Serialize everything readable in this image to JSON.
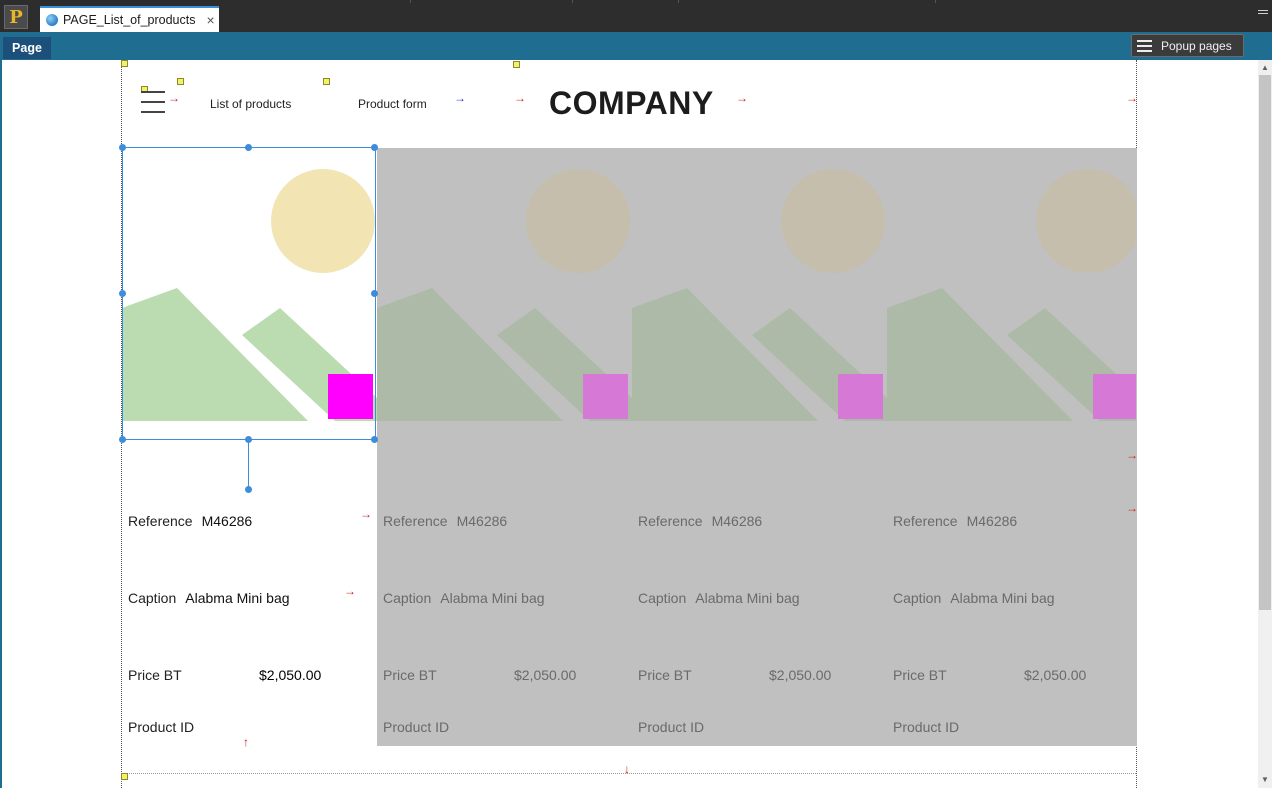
{
  "app": {
    "logo_letter": "P"
  },
  "tabs": [
    {
      "label": "PAGE_List_of_products",
      "close_glyph": "×"
    }
  ],
  "pagebar": {
    "page_tab": "Page",
    "popup_button": "Popup pages"
  },
  "header": {
    "nav_items": [
      "List of products",
      "Product form"
    ],
    "company": "COMPANY"
  },
  "products": [
    {
      "reference_label": "Reference",
      "reference": "M46286",
      "caption_label": "Caption",
      "caption": "Alabma Mini bag",
      "price_label": "Price BT",
      "price": "$2,050.00",
      "product_id_label": "Product ID"
    },
    {
      "reference_label": "Reference",
      "reference": "M46286",
      "caption_label": "Caption",
      "caption": "Alabma Mini bag",
      "price_label": "Price BT",
      "price": "$2,050.00",
      "product_id_label": "Product ID"
    },
    {
      "reference_label": "Reference",
      "reference": "M46286",
      "caption_label": "Caption",
      "caption": "Alabma Mini bag",
      "price_label": "Price BT",
      "price": "$2,050.00",
      "product_id_label": "Product ID"
    },
    {
      "reference_label": "Reference",
      "reference": "M46286",
      "caption_label": "Caption",
      "caption": "Alabma Mini bag",
      "price_label": "Price BT",
      "price": "$2,050.00",
      "product_id_label": "Product ID"
    }
  ],
  "icons": {
    "arrow_right": "→",
    "arrow_up": "↑",
    "arrow_down": "↓",
    "scroll_up": "▲",
    "scroll_down": "▼"
  },
  "colors": {
    "accent_blue": "#3e8ddb",
    "pagebar": "#1f6d91",
    "placeholder_sun": "#f3e4b4",
    "placeholder_mountain": "#bbdbb1",
    "placeholder_square": "#ff00ff",
    "repeat_overlay": "#c0c0c0"
  }
}
